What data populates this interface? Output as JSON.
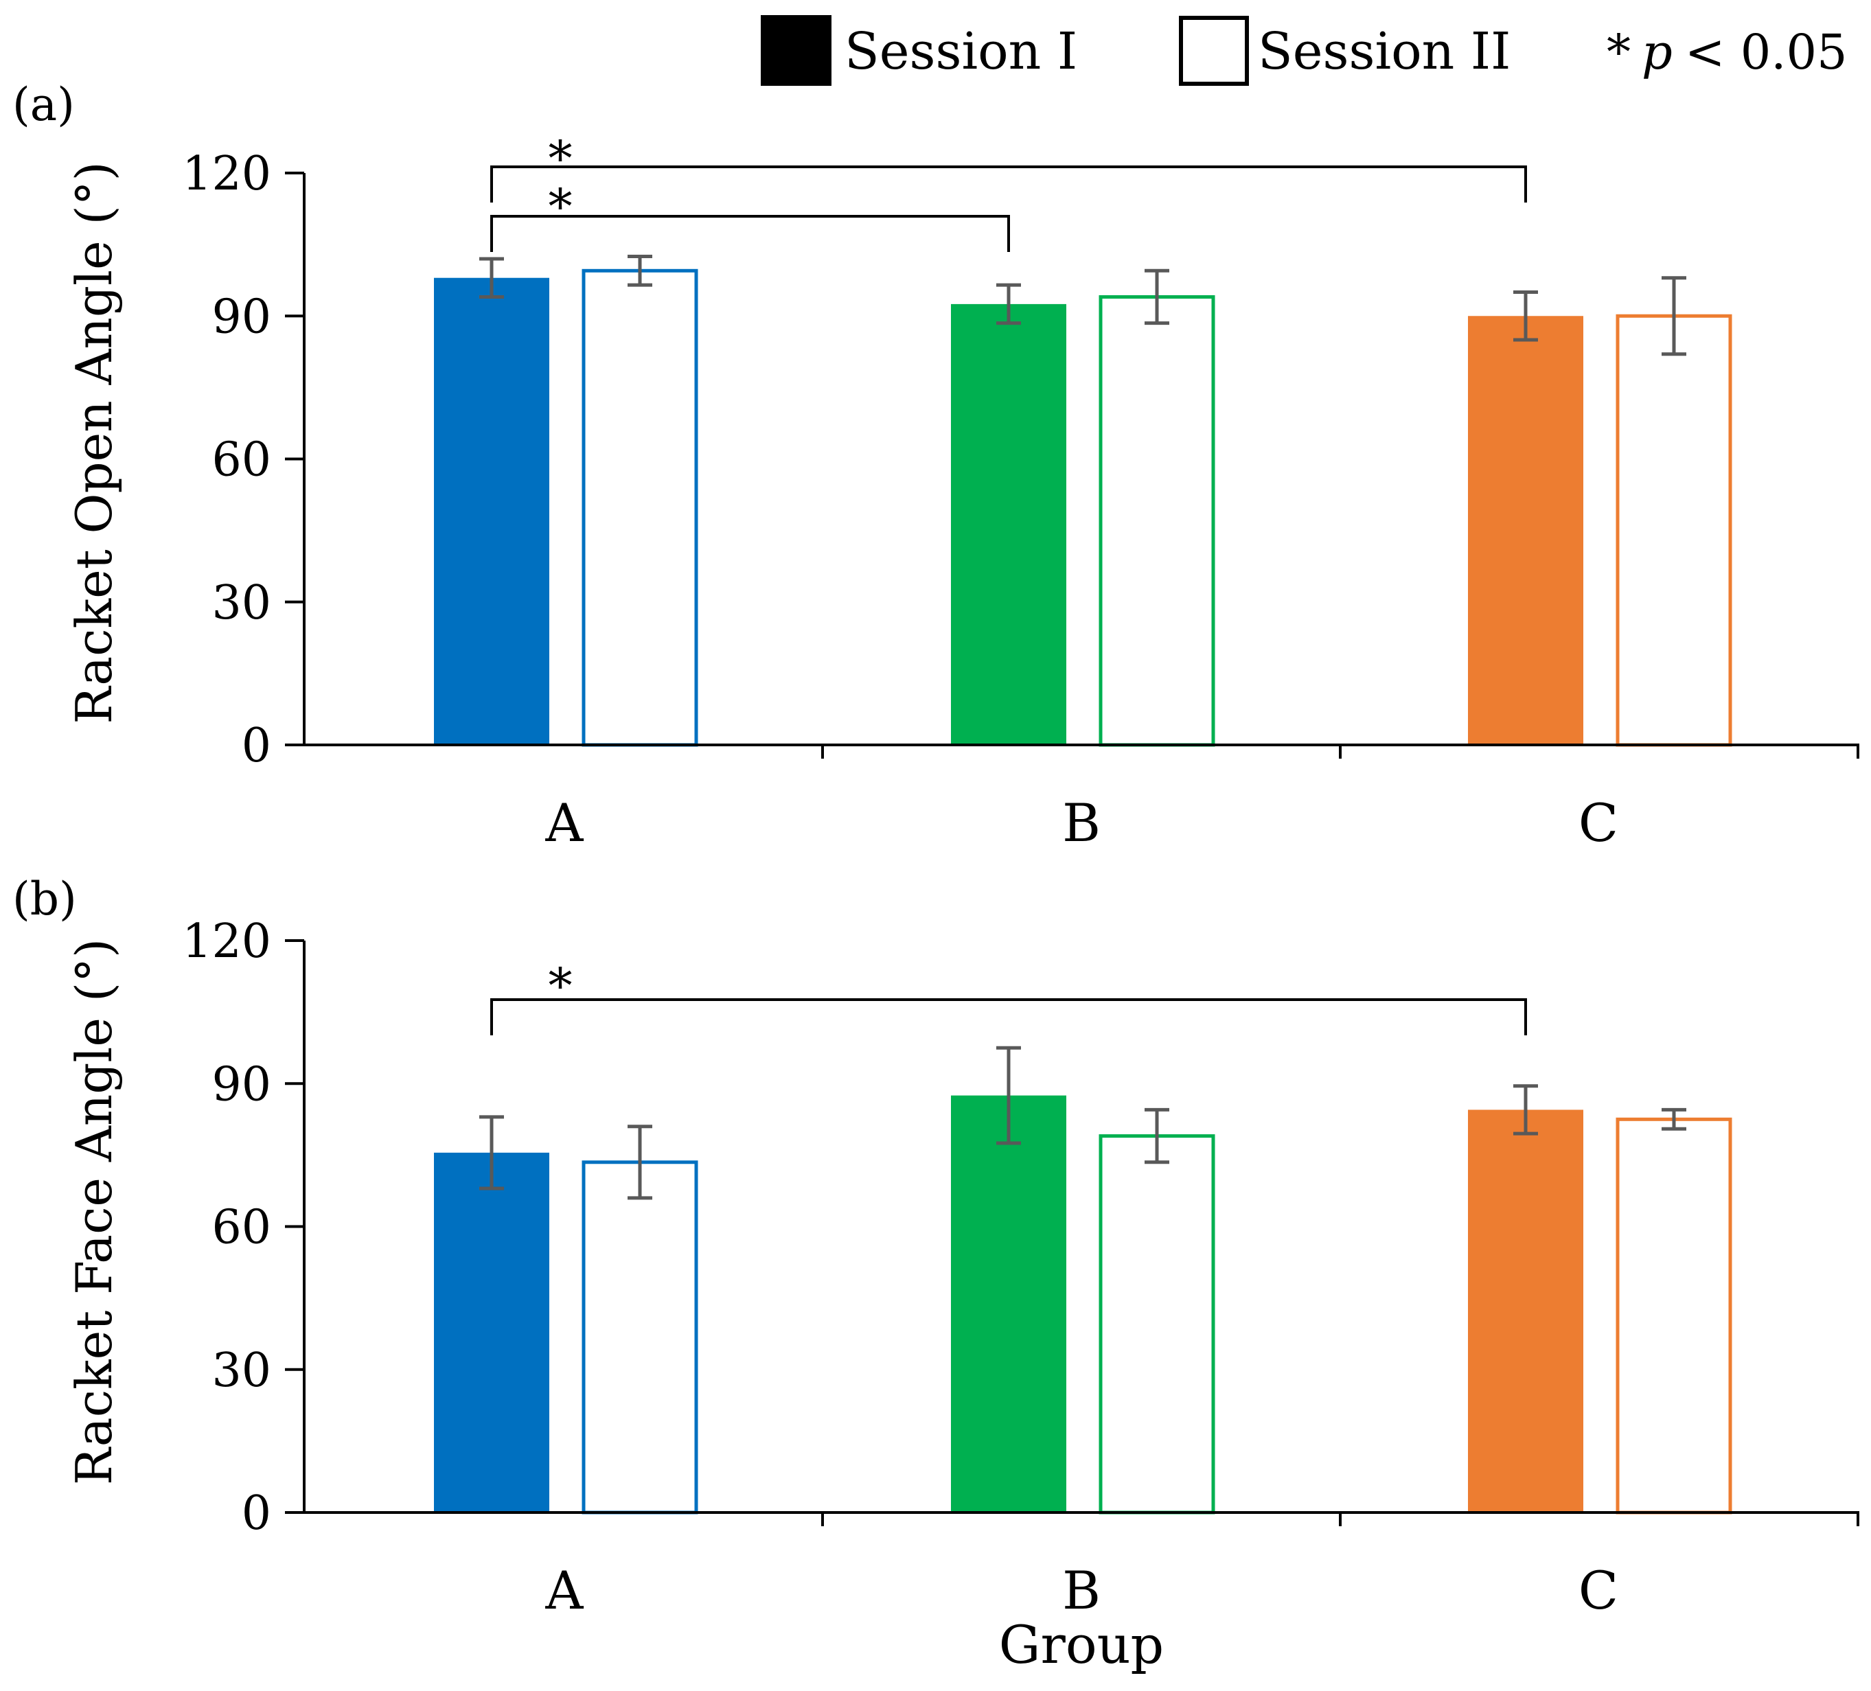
{
  "legend": {
    "session1_label": "Session I",
    "session2_label": "Session II",
    "sig_star": "*",
    "sig_p": "p",
    "sig_rest": "< 0.05"
  },
  "colors": {
    "A": "#0070c0",
    "B": "#00b050",
    "C": "#ed7d31",
    "error_bar": "#595959",
    "legend_fill": "#000000"
  },
  "chart_data": [
    {
      "type": "bar",
      "panel_label": "(a)",
      "title": "",
      "ylabel": "Racket Open Angle (°)",
      "xlabel": "",
      "ylim": [
        0,
        120
      ],
      "yticks": [
        "0",
        "30",
        "60",
        "90",
        "120"
      ],
      "categories": [
        "A",
        "B",
        "C"
      ],
      "series": [
        {
          "name": "Session I",
          "style": "filled",
          "values": [
            98,
            92.5,
            90
          ],
          "errors": [
            4,
            4,
            5
          ]
        },
        {
          "name": "Session II",
          "style": "outline",
          "values": [
            99.5,
            94,
            90
          ],
          "errors": [
            3,
            5.5,
            8
          ]
        }
      ],
      "significance": [
        {
          "from": "A",
          "to": "C",
          "label": "*"
        },
        {
          "from": "A",
          "to": "B",
          "label": "*"
        }
      ]
    },
    {
      "type": "bar",
      "panel_label": "(b)",
      "title": "",
      "ylabel": "Racket Face Angle (°)",
      "xlabel": "Group",
      "ylim": [
        0,
        120
      ],
      "yticks": [
        "0",
        "30",
        "60",
        "90",
        "120"
      ],
      "categories": [
        "A",
        "B",
        "C"
      ],
      "series": [
        {
          "name": "Session I",
          "style": "filled",
          "values": [
            75.5,
            87.5,
            84.5
          ],
          "errors": [
            7.5,
            10,
            5
          ]
        },
        {
          "name": "Session II",
          "style": "outline",
          "values": [
            73.5,
            79,
            82.5
          ],
          "errors": [
            7.5,
            5.5,
            2
          ]
        }
      ],
      "significance": [
        {
          "from": "A",
          "to": "C",
          "label": "*"
        }
      ]
    }
  ]
}
